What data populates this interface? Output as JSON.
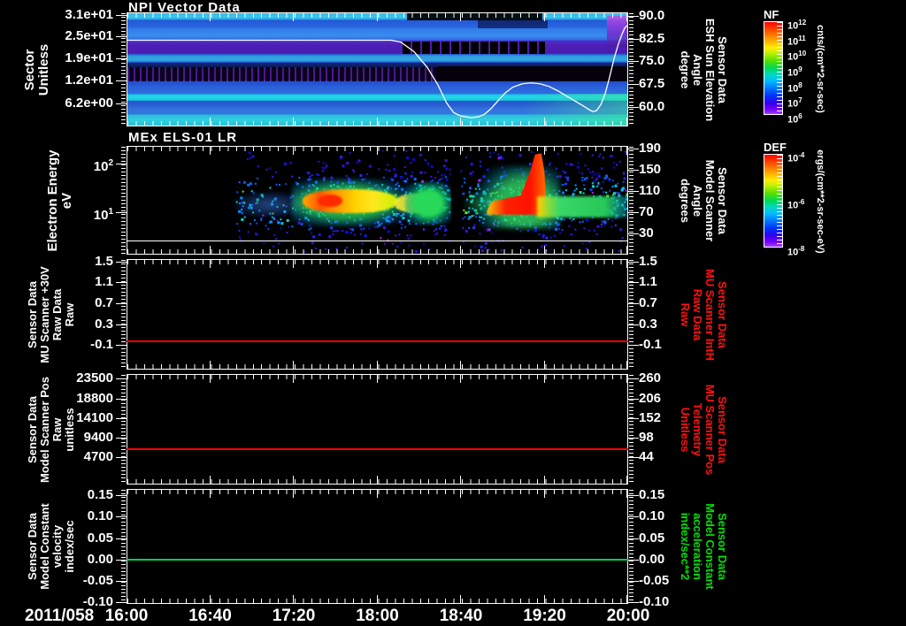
{
  "xaxis": {
    "date": "2011/058",
    "ticks": [
      "16:00",
      "16:40",
      "17:20",
      "18:00",
      "18:40",
      "19:20",
      "20:00"
    ]
  },
  "panels": [
    {
      "id": "p1",
      "title": "NPI Vector Data",
      "left_label": [
        "Sector",
        "Unitless"
      ],
      "left_ticks": [
        "3.1e+01",
        "2.5e+01",
        "1.9e+01",
        "1.2e+01",
        "6.2e+00"
      ],
      "right_label": [
        "Sensor Data",
        "ESH Sun Elevation",
        "Angle",
        "degree"
      ],
      "right_ticks": [
        "90.0",
        "82.5",
        "75.0",
        "67.5",
        "60.0"
      ],
      "label_color": "#ffffff"
    },
    {
      "id": "p2",
      "title": "MEx ELS-01 LR",
      "left_label": [
        "Electron Energy",
        "eV"
      ],
      "left_ticks": [
        "10^2",
        "10^1"
      ],
      "right_label": [
        "Sensor Data",
        "Model Scanner",
        "Angle",
        "degrees"
      ],
      "right_ticks": [
        "190",
        "150",
        "110",
        "70",
        "30"
      ],
      "label_color": "#ffffff"
    },
    {
      "id": "p3",
      "title": "",
      "left_label": [
        "Sensor Data",
        "MU Scanner +30V",
        "Raw Data",
        "Raw"
      ],
      "left_ticks": [
        "1.5",
        "1.1",
        "0.7",
        "0.3",
        "-0.1"
      ],
      "right_label": [
        "Sensor Data",
        "MU Scanner IntH",
        "Raw Data",
        "Raw"
      ],
      "right_ticks": [
        "1.5",
        "1.1",
        "0.7",
        "0.3",
        "-0.1"
      ],
      "label_color": "#ff1010",
      "line_color": "#ff0000"
    },
    {
      "id": "p4",
      "title": "",
      "left_label": [
        "Sensor Data",
        "Model Scanner Pos",
        "Raw",
        "unitless"
      ],
      "left_ticks": [
        "23500",
        "18800",
        "14100",
        "9400",
        "4700"
      ],
      "right_label": [
        "Sensor Data",
        "MU Scanner Pos",
        "Telemetry",
        "Unitless"
      ],
      "right_ticks": [
        "260",
        "206",
        "152",
        "98",
        "44"
      ],
      "label_color": "#ff1010",
      "line_color": "#ff0000"
    },
    {
      "id": "p5",
      "title": "",
      "left_label": [
        "Sensor Data",
        "Model Constant",
        "velocity",
        "index/sec"
      ],
      "left_ticks": [
        "0.15",
        "0.10",
        "0.05",
        "0.00",
        "-0.05",
        "-0.10"
      ],
      "right_label": [
        "Sensor Data",
        "Model Constant",
        "acceleration",
        "index/sec**2"
      ],
      "right_ticks": [
        "0.15",
        "0.10",
        "0.05",
        "0.00",
        "-0.05",
        "-0.10"
      ],
      "label_color": "#00e000",
      "line_color": "#00d050"
    }
  ],
  "colorbars": [
    {
      "name": "NF",
      "ticks": [
        "10^12",
        "10^11",
        "10^10",
        "10^9",
        "10^8",
        "10^7",
        "10^6"
      ],
      "units": "cnts/(cm**2-sr-sec)"
    },
    {
      "name": "DEF",
      "ticks": [
        "10^-4",
        "10^-6",
        "10^-8"
      ],
      "units": "ergs/(cm**2-sr-sec-eV)"
    }
  ],
  "chart_data": [
    {
      "type": "heatmap",
      "title": "NPI Vector Data",
      "xlabel": "time (2011/058 16:00 - 20:00)",
      "xticks": [
        "16:00",
        "16:40",
        "17:20",
        "18:00",
        "18:40",
        "19:20",
        "20:00"
      ],
      "ylabel": "Sector Unitless",
      "yticks": [
        31,
        25,
        19,
        12,
        6.2
      ],
      "value_scale": {
        "name": "NF",
        "units": "cnts/(cm**2-sr-sec)",
        "ticks": [
          "1e12",
          "1e11",
          "1e10",
          "1e9",
          "1e8",
          "1e7",
          "1e6"
        ]
      },
      "description": "Horizontally banded counts spectrogram: bright cyan bands near sectors 1-2, 9-10 and 30-32; purple band near sectors 20-23; black/no-data band near sectors 13-17; black dropout patches 18:00-19:15; greenish enhancement bottom-right after 19:10",
      "overlay_series": {
        "name": "Sensor Data ESH Sun Elevation Angle degree",
        "yticks": [
          90.0,
          82.5,
          75.0,
          67.5,
          60.0
        ],
        "points": [
          [
            "16:00",
            83
          ],
          [
            "18:10",
            83
          ],
          [
            "18:25",
            72
          ],
          [
            "18:40",
            59
          ],
          [
            "18:55",
            58
          ],
          [
            "19:05",
            61
          ],
          [
            "19:15",
            66
          ],
          [
            "19:25",
            67
          ],
          [
            "19:40",
            64
          ],
          [
            "19:50",
            60
          ],
          [
            "19:56",
            70
          ],
          [
            "20:00",
            88
          ]
        ]
      }
    },
    {
      "type": "heatmap",
      "title": "MEx ELS-01 LR",
      "ylabel": "Electron Energy eV",
      "yscale": "log",
      "yticks": [
        "10^1",
        "10^2"
      ],
      "y2label": "Sensor Data Model Scanner Angle degrees",
      "y2ticks": [
        190,
        150,
        110,
        70,
        30
      ],
      "value_scale": {
        "name": "DEF",
        "units": "ergs/(cm**2-sr-sec-eV)",
        "ticks": [
          "1e-4",
          "1e-6",
          "1e-8"
        ]
      },
      "description": "No data before ~16:50; diffuse blue electron flux speckle 16:50-20:00; intense yellow-orange band near 10-30 eV from 17:25-18:05; green patch 18:15-18:30; vertical data gap ~18:35; intense red wedge rising to ~100 eV 19:00-19:30; green band ~20 eV continuing to 20:00; constant white line near 2 eV"
    },
    {
      "type": "line",
      "ylabel": "Sensor Data MU Scanner +30V Raw Data Raw",
      "yticks": [
        1.5,
        1.1,
        0.7,
        0.3,
        -0.1
      ],
      "y2label": "Sensor Data MU Scanner IntH Raw Data Raw",
      "y2ticks": [
        1.5,
        1.1,
        0.7,
        0.3,
        -0.1
      ],
      "series": [
        {
          "name": "MU Scanner +30V",
          "color": "#ff0000",
          "constant_value": 0.0
        }
      ]
    },
    {
      "type": "line",
      "ylabel": "Sensor Data Model Scanner Pos Raw unitless",
      "yticks": [
        23500,
        18800,
        14100,
        9400,
        4700
      ],
      "y2label": "Sensor Data MU Scanner Pos Telemetry Unitless",
      "y2ticks": [
        260,
        206,
        152,
        98,
        44
      ],
      "series": [
        {
          "name": "Model Scanner Pos",
          "color": "#ff0000",
          "constant_value": 8000
        }
      ]
    },
    {
      "type": "line",
      "ylabel": "Sensor Data Model Constant velocity index/sec",
      "yticks": [
        0.15,
        0.1,
        0.05,
        0.0,
        -0.05,
        -0.1
      ],
      "y2label": "Sensor Data Model Constant acceleration index/sec**2",
      "y2ticks": [
        0.15,
        0.1,
        0.05,
        0.0,
        -0.05,
        -0.1
      ],
      "series": [
        {
          "name": "Model Constant velocity",
          "color": "#00d050",
          "constant_value": 0.0
        }
      ]
    }
  ]
}
